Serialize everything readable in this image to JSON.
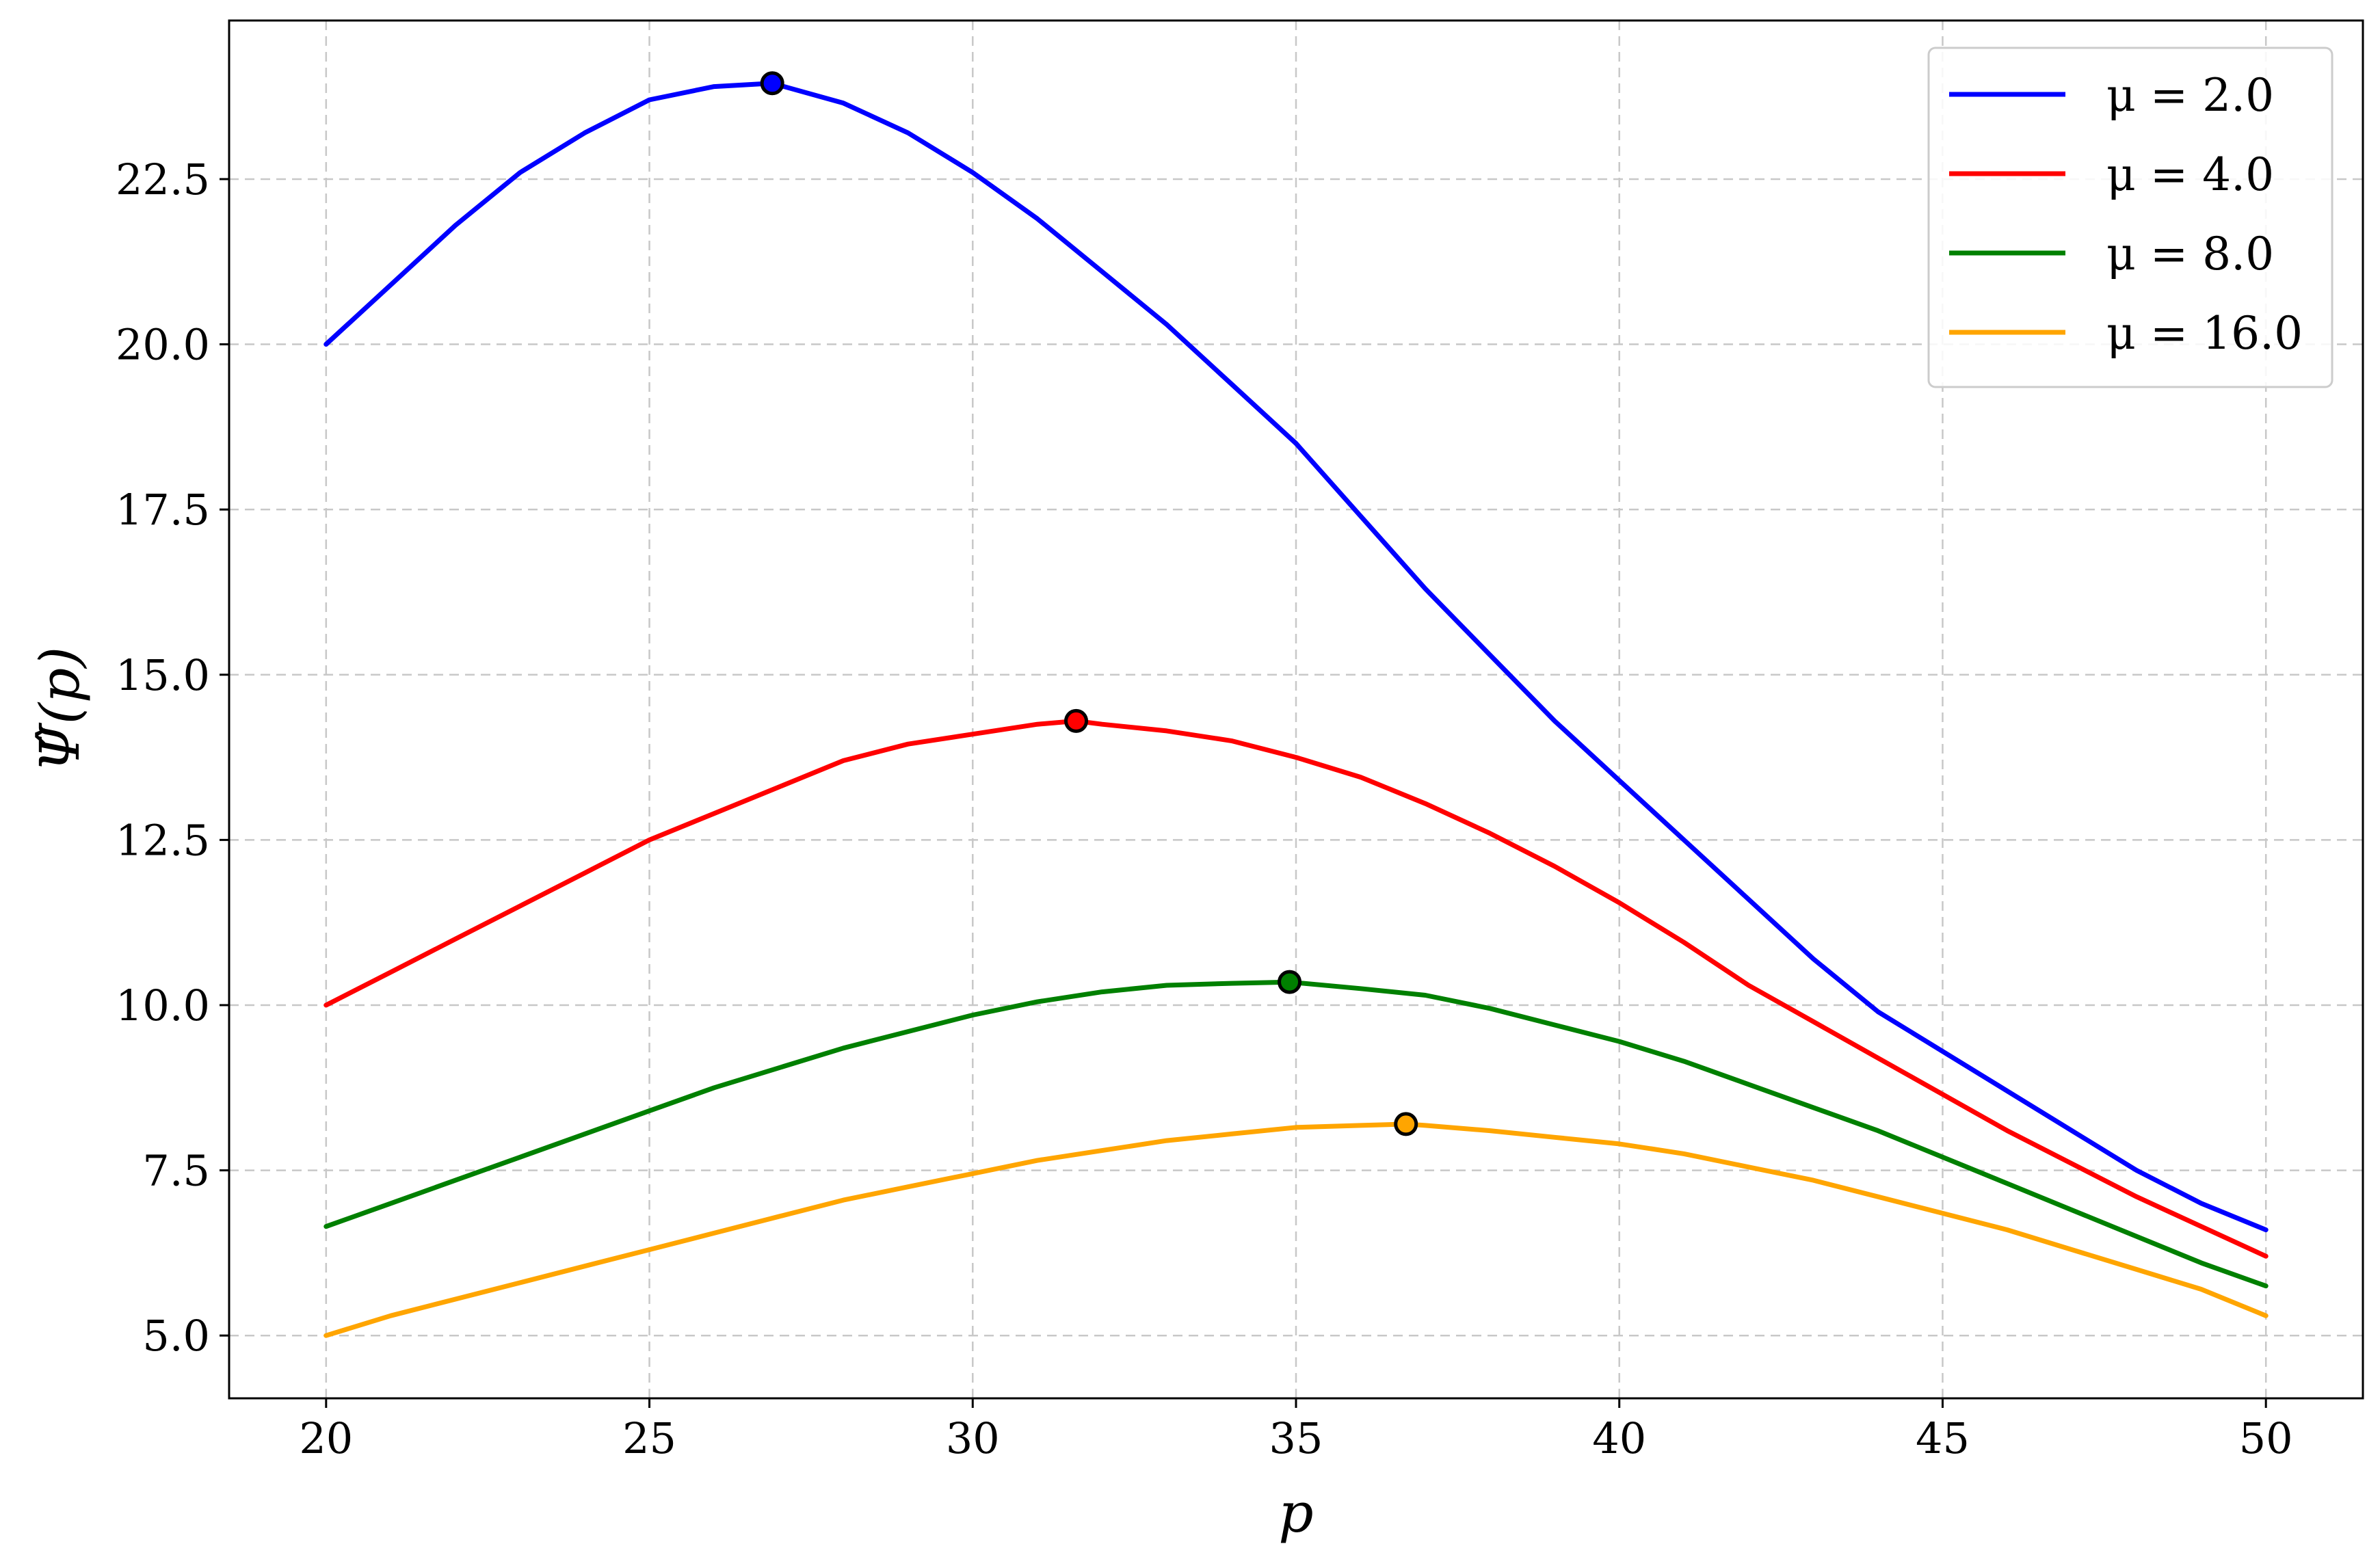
{
  "chart_data": {
    "type": "line",
    "title": "",
    "xlabel": "p",
    "ylabel": "Ψ̂(p)",
    "xlim": [
      18.5,
      51.5
    ],
    "ylim": [
      4.05,
      24.9
    ],
    "xticks": [
      20,
      25,
      30,
      35,
      40,
      45,
      50
    ],
    "xtick_labels": [
      "20",
      "25",
      "30",
      "35",
      "40",
      "45",
      "50"
    ],
    "yticks": [
      5.0,
      7.5,
      10.0,
      12.5,
      15.0,
      17.5,
      20.0,
      22.5
    ],
    "ytick_labels": [
      "5.0",
      "7.5",
      "10.0",
      "12.5",
      "15.0",
      "17.5",
      "20.0",
      "22.5"
    ],
    "grid": true,
    "legend_position": "top-right",
    "series": [
      {
        "name": "μ = 2.0",
        "color": "#0000ff",
        "x": [
          20,
          21,
          22,
          23,
          24,
          25,
          26,
          26.9,
          28,
          29,
          30,
          31,
          32,
          33,
          34,
          35,
          36,
          37,
          38,
          39,
          40,
          41,
          42,
          43,
          44,
          45,
          46,
          47,
          48,
          49,
          50
        ],
        "y": [
          20.0,
          20.9,
          21.8,
          22.6,
          23.2,
          23.7,
          23.9,
          23.95,
          23.65,
          23.2,
          22.6,
          21.9,
          21.1,
          20.3,
          19.4,
          18.5,
          17.4,
          16.3,
          15.3,
          14.3,
          13.4,
          12.5,
          11.6,
          10.7,
          9.9,
          9.3,
          8.7,
          8.1,
          7.5,
          7.0,
          6.6
        ],
        "peak": {
          "x": 26.9,
          "y": 23.95
        }
      },
      {
        "name": "μ = 4.0",
        "color": "#ff0000",
        "x": [
          20,
          21,
          22,
          23,
          24,
          25,
          26,
          27,
          28,
          29,
          30,
          31,
          31.6,
          32,
          33,
          34,
          35,
          36,
          37,
          38,
          39,
          40,
          41,
          42,
          43,
          44,
          45,
          46,
          47,
          48,
          49,
          50
        ],
        "y": [
          10.0,
          10.5,
          11.0,
          11.5,
          12.0,
          12.5,
          12.9,
          13.3,
          13.7,
          13.95,
          14.1,
          14.25,
          14.3,
          14.25,
          14.15,
          14.0,
          13.75,
          13.45,
          13.05,
          12.6,
          12.1,
          11.55,
          10.95,
          10.3,
          9.75,
          9.2,
          8.65,
          8.1,
          7.6,
          7.1,
          6.65,
          6.2
        ],
        "peak": {
          "x": 31.6,
          "y": 14.3
        }
      },
      {
        "name": "μ = 8.0",
        "color": "#008000",
        "x": [
          20,
          21,
          22,
          23,
          24,
          25,
          26,
          27,
          28,
          29,
          30,
          31,
          32,
          33,
          34,
          34.9,
          36,
          37,
          38,
          39,
          40,
          41,
          42,
          43,
          44,
          45,
          46,
          47,
          48,
          49,
          50
        ],
        "y": [
          6.65,
          7.0,
          7.35,
          7.7,
          8.05,
          8.4,
          8.75,
          9.05,
          9.35,
          9.6,
          9.85,
          10.05,
          10.2,
          10.3,
          10.33,
          10.35,
          10.25,
          10.15,
          9.95,
          9.7,
          9.45,
          9.15,
          8.8,
          8.45,
          8.1,
          7.7,
          7.3,
          6.9,
          6.5,
          6.1,
          5.75
        ],
        "peak": {
          "x": 34.9,
          "y": 10.35
        }
      },
      {
        "name": "μ = 16.0",
        "color": "#ffa500",
        "x": [
          20,
          21,
          22,
          23,
          24,
          25,
          26,
          27,
          28,
          29,
          30,
          31,
          32,
          33,
          34,
          35,
          36,
          36.7,
          37,
          38,
          39,
          40,
          41,
          42,
          43,
          44,
          45,
          46,
          47,
          48,
          49,
          50
        ],
        "y": [
          5.0,
          5.3,
          5.55,
          5.8,
          6.05,
          6.3,
          6.55,
          6.8,
          7.05,
          7.25,
          7.45,
          7.65,
          7.8,
          7.95,
          8.05,
          8.15,
          8.18,
          8.2,
          8.18,
          8.1,
          8.0,
          7.9,
          7.75,
          7.55,
          7.35,
          7.1,
          6.85,
          6.6,
          6.3,
          6.0,
          5.7,
          5.3
        ],
        "peak": {
          "x": 36.7,
          "y": 8.2
        }
      }
    ]
  }
}
